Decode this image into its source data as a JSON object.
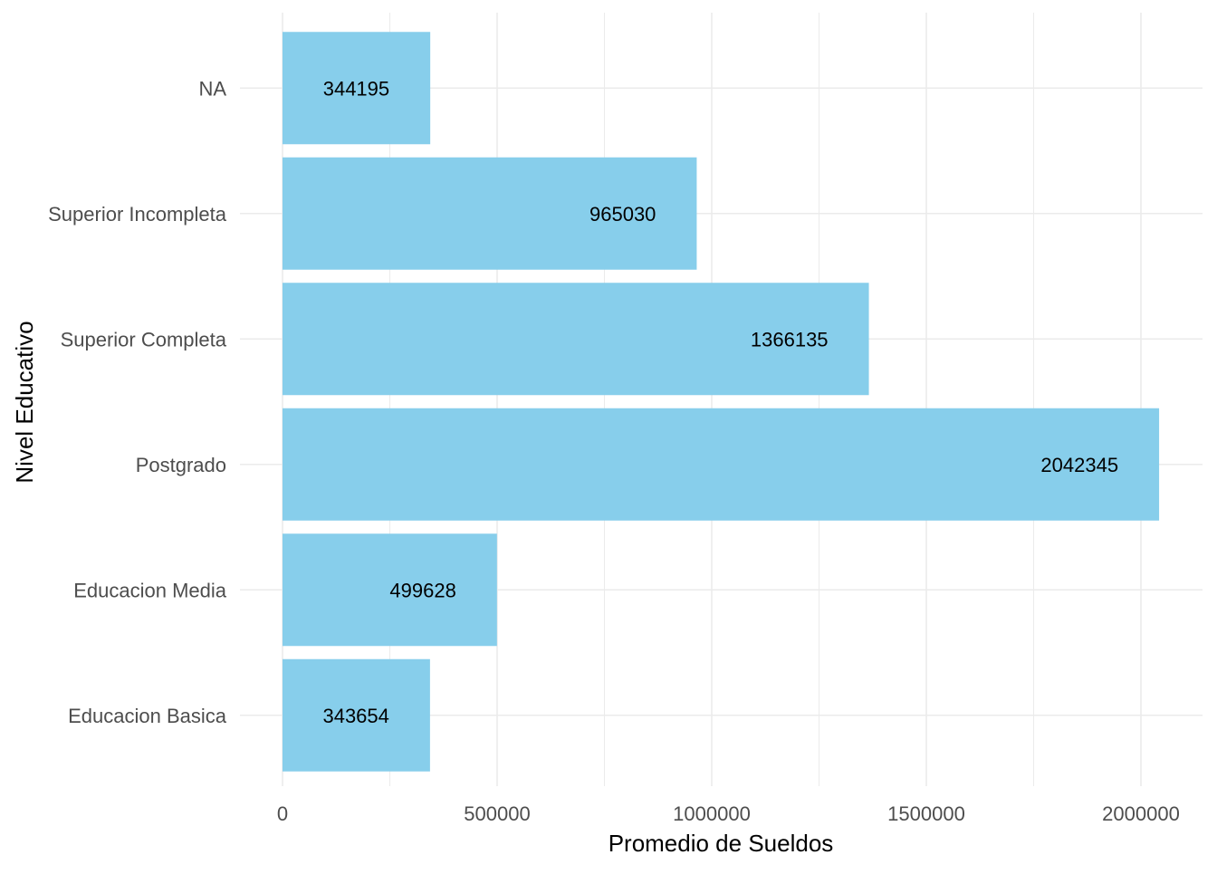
{
  "chart_data": {
    "type": "bar",
    "orientation": "horizontal",
    "title": "",
    "xlabel": "Promedio de Sueldos",
    "ylabel": "Nivel Educativo",
    "xlim": [
      0,
      2100000
    ],
    "x_ticks": [
      0,
      500000,
      1000000,
      1500000,
      2000000
    ],
    "x_tick_labels": [
      "0",
      "500000",
      "1000000",
      "1500000",
      "2000000"
    ],
    "categories": [
      "Educacion Basica",
      "Educacion Media",
      "Postgrado",
      "Superior Completa",
      "Superior Incompleta",
      "NA"
    ],
    "values": [
      343654,
      499628,
      2042345,
      1366135,
      965030,
      344195
    ],
    "data_labels": [
      "343654",
      "499628",
      "2042345",
      "1366135",
      "965030",
      "344195"
    ],
    "grid": true,
    "legend": "none",
    "colors": {
      "bar": "#87CEEB",
      "grid": "#EBEBEB",
      "tick_text": "#4D4D4D",
      "axis_title": "#000000",
      "data_label": "#000000"
    }
  }
}
